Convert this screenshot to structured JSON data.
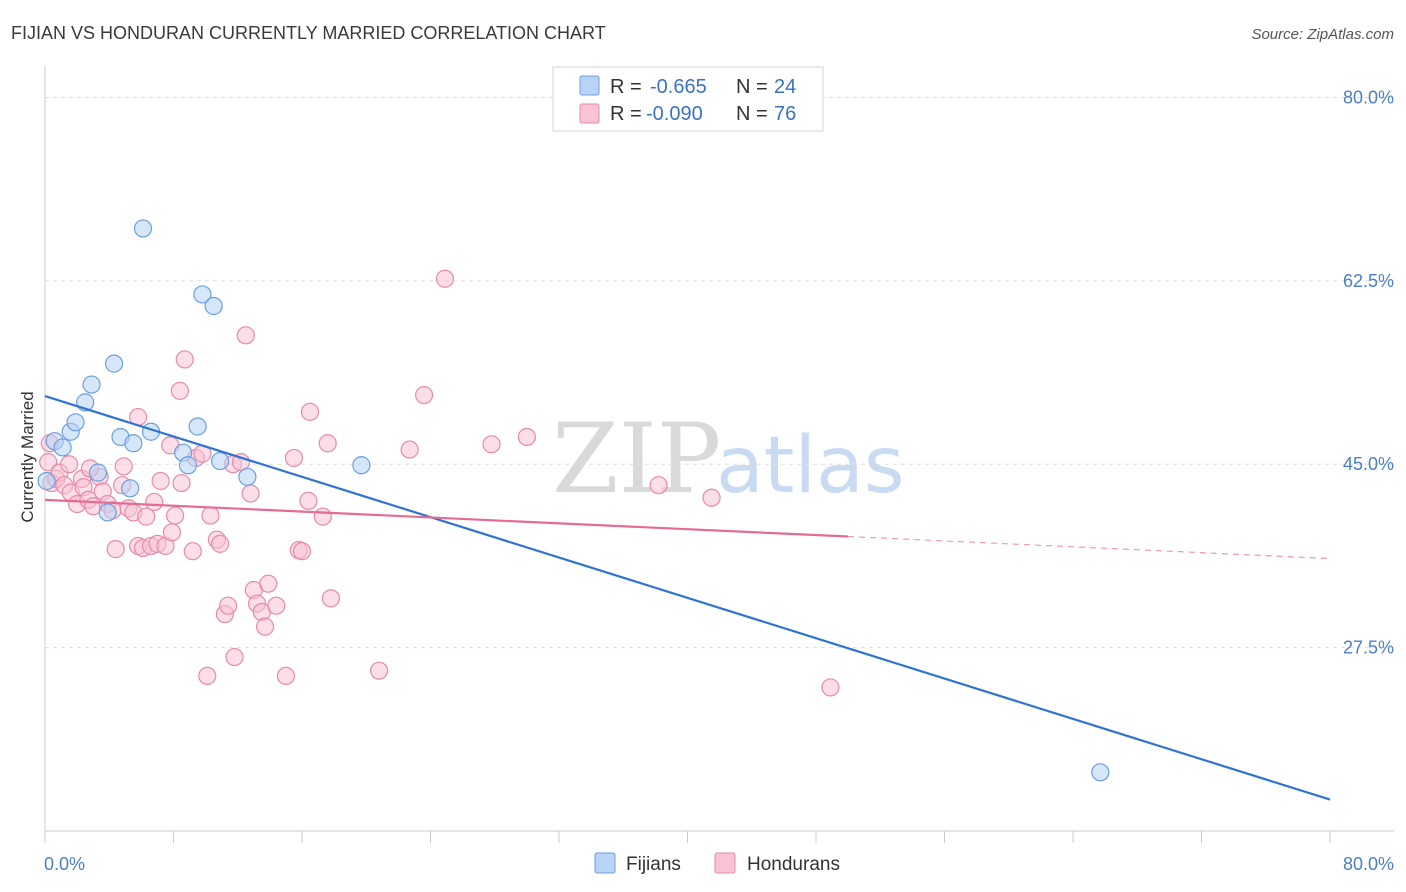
{
  "title": "FIJIAN VS HONDURAN CURRENTLY MARRIED CORRELATION CHART",
  "source": "Source: ZipAtlas.com",
  "watermark": {
    "zip": "ZIP",
    "atlas": "atlas"
  },
  "colors": {
    "fijian_fill": "#b7d3f5",
    "fijian_stroke": "#6b9fe0",
    "fijian_line": "#2f74d0",
    "honduran_fill": "#f8c3d4",
    "honduran_stroke": "#e88aa8",
    "honduran_line": "#e26c95",
    "grid": "#dddddd",
    "tick_text": "#4a7ec9"
  },
  "legend": {
    "rows": [
      {
        "r_label": "R =",
        "r_value": "-0.665",
        "n_label": "N =",
        "n_value": "24"
      },
      {
        "r_label": "R =",
        "r_value": "-0.090",
        "n_label": "N =",
        "n_value": "76"
      }
    ]
  },
  "bottom_legend": [
    "Fijians",
    "Hondurans"
  ],
  "chart_data": {
    "type": "scatter",
    "title": "FIJIAN VS HONDURAN CURRENTLY MARRIED CORRELATION CHART",
    "xlabel": "",
    "ylabel": "Currently Married",
    "xlim": [
      0,
      80
    ],
    "ylim": [
      10,
      83
    ],
    "x_tick_labels": [
      "0.0%",
      "80.0%"
    ],
    "y_ticks": [
      27.5,
      45.0,
      62.5,
      80.0
    ],
    "y_tick_labels": [
      "27.5%",
      "45.0%",
      "62.5%",
      "80.0%"
    ],
    "grid": true,
    "series": [
      {
        "name": "Fijians",
        "r": -0.665,
        "n": 24,
        "trend": {
          "x0": 0,
          "y0": 51.5,
          "x1": 80,
          "y1": 13.0
        },
        "points": [
          [
            0.1,
            43.4
          ],
          [
            0.6,
            47.2
          ],
          [
            1.1,
            46.6
          ],
          [
            1.6,
            48.1
          ],
          [
            1.9,
            49.0
          ],
          [
            2.5,
            50.9
          ],
          [
            2.9,
            52.6
          ],
          [
            3.3,
            44.2
          ],
          [
            3.9,
            40.4
          ],
          [
            4.3,
            54.6
          ],
          [
            4.7,
            47.6
          ],
          [
            5.3,
            42.7
          ],
          [
            5.5,
            47.0
          ],
          [
            6.1,
            67.5
          ],
          [
            6.6,
            48.1
          ],
          [
            8.6,
            46.1
          ],
          [
            8.9,
            44.9
          ],
          [
            9.5,
            48.6
          ],
          [
            9.8,
            61.2
          ],
          [
            10.5,
            60.1
          ],
          [
            10.9,
            45.3
          ],
          [
            12.6,
            43.8
          ],
          [
            19.7,
            44.9
          ],
          [
            65.7,
            15.6
          ]
        ]
      },
      {
        "name": "Hondurans",
        "r": -0.09,
        "n": 76,
        "trend": {
          "x0": 0,
          "y0": 41.6,
          "x1": 50,
          "y1": 38.1
        },
        "trend_dashed": {
          "x0": 50,
          "y0": 38.1,
          "x1": 80,
          "y1": 36.0
        },
        "points": [
          [
            0.2,
            45.2
          ],
          [
            0.4,
            43.2
          ],
          [
            0.7,
            43.6
          ],
          [
            0.9,
            44.2
          ],
          [
            1.2,
            43.0
          ],
          [
            1.5,
            45.0
          ],
          [
            1.6,
            42.3
          ],
          [
            2.0,
            41.2
          ],
          [
            2.3,
            43.6
          ],
          [
            2.4,
            42.8
          ],
          [
            2.7,
            41.6
          ],
          [
            3.0,
            41.0
          ],
          [
            3.4,
            43.8
          ],
          [
            3.6,
            42.4
          ],
          [
            3.9,
            41.2
          ],
          [
            4.2,
            40.6
          ],
          [
            4.4,
            36.9
          ],
          [
            4.8,
            43.0
          ],
          [
            4.9,
            44.8
          ],
          [
            5.2,
            40.8
          ],
          [
            5.5,
            40.4
          ],
          [
            5.8,
            37.2
          ],
          [
            6.1,
            37.0
          ],
          [
            6.3,
            40.0
          ],
          [
            6.6,
            37.2
          ],
          [
            6.8,
            41.4
          ],
          [
            7.0,
            37.4
          ],
          [
            7.2,
            43.4
          ],
          [
            7.5,
            37.2
          ],
          [
            7.8,
            46.8
          ],
          [
            7.9,
            38.5
          ],
          [
            8.1,
            40.1
          ],
          [
            8.5,
            43.2
          ],
          [
            8.4,
            52.0
          ],
          [
            8.7,
            55.0
          ],
          [
            9.2,
            36.7
          ],
          [
            9.4,
            45.6
          ],
          [
            9.8,
            46.0
          ],
          [
            10.1,
            24.8
          ],
          [
            10.3,
            40.1
          ],
          [
            10.7,
            37.8
          ],
          [
            10.9,
            37.4
          ],
          [
            11.2,
            30.7
          ],
          [
            11.4,
            31.5
          ],
          [
            11.7,
            45.0
          ],
          [
            11.8,
            26.6
          ],
          [
            12.2,
            45.2
          ],
          [
            12.5,
            57.3
          ],
          [
            12.8,
            42.2
          ],
          [
            13.0,
            33.0
          ],
          [
            13.2,
            31.7
          ],
          [
            13.5,
            30.9
          ],
          [
            13.7,
            29.5
          ],
          [
            13.9,
            33.6
          ],
          [
            14.4,
            31.5
          ],
          [
            15.0,
            24.8
          ],
          [
            15.5,
            45.6
          ],
          [
            15.8,
            36.8
          ],
          [
            16.0,
            36.7
          ],
          [
            16.4,
            41.5
          ],
          [
            16.5,
            50.0
          ],
          [
            17.3,
            40.0
          ],
          [
            17.6,
            47.0
          ],
          [
            17.8,
            32.2
          ],
          [
            20.8,
            25.3
          ],
          [
            22.7,
            46.4
          ],
          [
            23.6,
            51.6
          ],
          [
            24.9,
            62.7
          ],
          [
            27.8,
            46.9
          ],
          [
            30.0,
            47.6
          ],
          [
            38.2,
            43.0
          ],
          [
            41.5,
            41.8
          ],
          [
            48.9,
            23.7
          ],
          [
            0.3,
            47.0
          ],
          [
            2.8,
            44.6
          ],
          [
            5.8,
            49.5
          ]
        ]
      }
    ]
  }
}
